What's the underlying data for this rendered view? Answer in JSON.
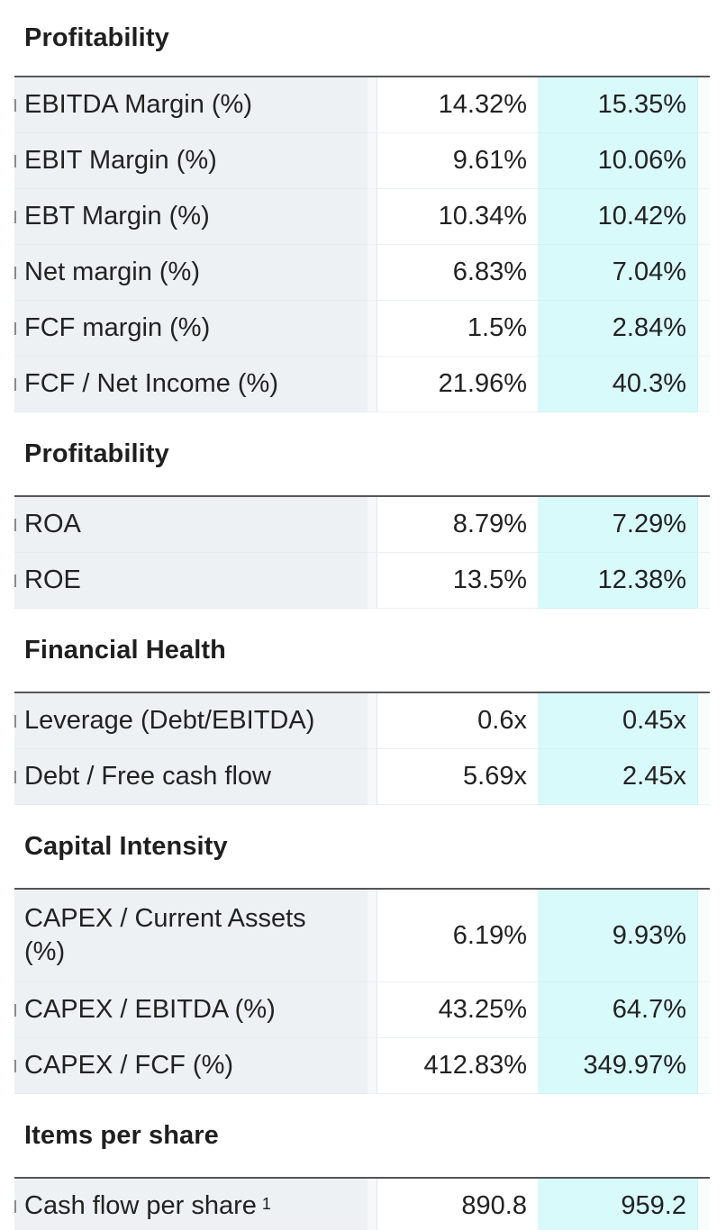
{
  "sections": [
    {
      "title": "Profitability",
      "rows": [
        {
          "label": "EBITDA Margin (%)",
          "v1": "14.32%",
          "v2": "15.35%"
        },
        {
          "label": "EBIT Margin (%)",
          "v1": "9.61%",
          "v2": "10.06%"
        },
        {
          "label": "EBT Margin (%)",
          "v1": "10.34%",
          "v2": "10.42%"
        },
        {
          "label": "Net margin (%)",
          "v1": "6.83%",
          "v2": "7.04%"
        },
        {
          "label": "FCF margin (%)",
          "v1": "1.5%",
          "v2": "2.84%"
        },
        {
          "label": "FCF / Net Income (%)",
          "v1": "21.96%",
          "v2": "40.3%"
        }
      ]
    },
    {
      "title": "Profitability",
      "rows": [
        {
          "label": "ROA",
          "v1": "8.79%",
          "v2": "7.29%"
        },
        {
          "label": "ROE",
          "v1": "13.5%",
          "v2": "12.38%"
        }
      ]
    },
    {
      "title": "Financial Health",
      "rows": [
        {
          "label": "Leverage (Debt/EBITDA)",
          "v1": "0.6x",
          "v2": "0.45x"
        },
        {
          "label": "Debt / Free cash flow",
          "v1": "5.69x",
          "v2": "2.45x"
        }
      ]
    },
    {
      "title": "Capital Intensity",
      "rows": [
        {
          "label": "CAPEX / Current Assets (%)",
          "v1": "6.19%",
          "v2": "9.93%"
        },
        {
          "label": "CAPEX / EBITDA (%)",
          "v1": "43.25%",
          "v2": "64.7%"
        },
        {
          "label": "CAPEX / FCF (%)",
          "v1": "412.83%",
          "v2": "349.97%"
        }
      ]
    },
    {
      "title": "Items per share",
      "rows": [
        {
          "label": "Cash flow per share",
          "sup": "1",
          "v1": "890.8",
          "v2": "959.2"
        }
      ]
    }
  ]
}
